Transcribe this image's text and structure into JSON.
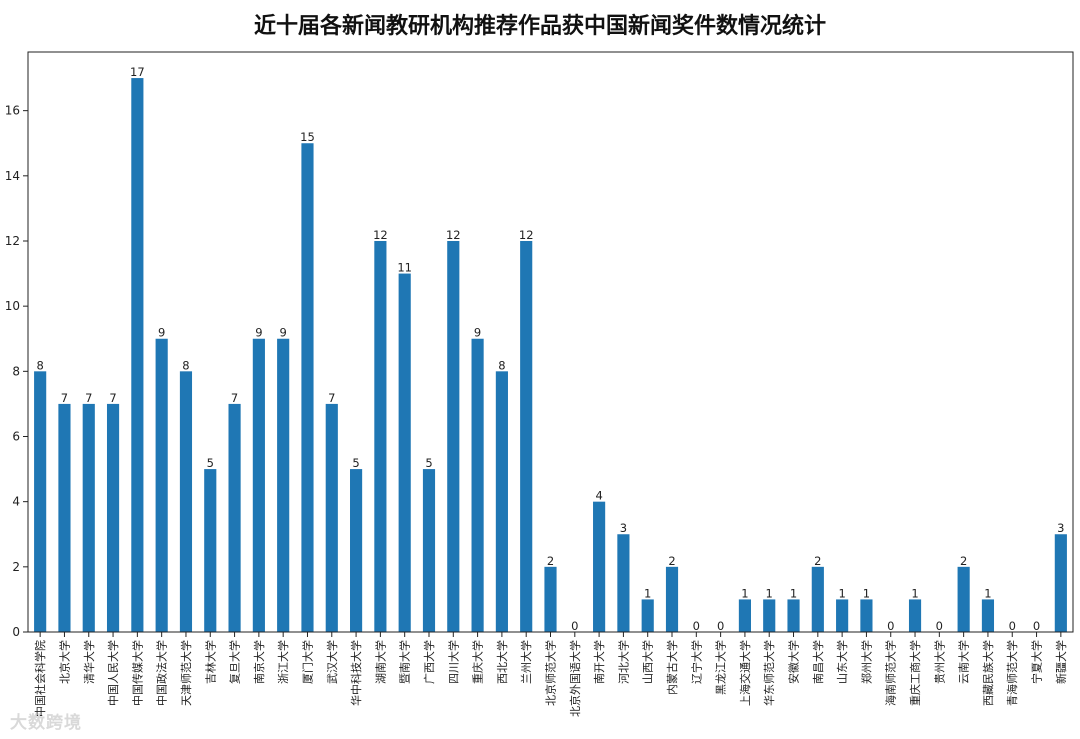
{
  "chart_data": {
    "type": "bar",
    "title": "近十届各新闻教研机构推荐作品获中国新闻奖件数情况统计",
    "xlabel": "",
    "ylabel": "",
    "ylim": [
      0,
      17.8
    ],
    "yticks": [
      0,
      2,
      4,
      6,
      8,
      10,
      12,
      14,
      16
    ],
    "grid": false,
    "bar_color": "#1f77b4",
    "categories": [
      "中国社会科学院",
      "北京大学",
      "清华大学",
      "中国人民大学",
      "中国传媒大学",
      "中国政法大学",
      "天津师范大学",
      "吉林大学",
      "复旦大学",
      "南京大学",
      "浙江大学",
      "厦门大学",
      "武汉大学",
      "华中科技大学",
      "湖南大学",
      "暨南大学",
      "广西大学",
      "四川大学",
      "重庆大学",
      "西北大学",
      "兰州大学",
      "北京师范大学",
      "北京外国语大学",
      "南开大学",
      "河北大学",
      "山西大学",
      "内蒙古大学",
      "辽宁大学",
      "黑龙江大学",
      "上海交通大学",
      "华东师范大学",
      "安徽大学",
      "南昌大学",
      "山东大学",
      "郑州大学",
      "海南师范大学",
      "重庆工商大学",
      "贵州大学",
      "云南大学",
      "西藏民族大学",
      "青海师范大学",
      "宁夏大学",
      "新疆大学"
    ],
    "values": [
      8,
      7,
      7,
      7,
      17,
      9,
      8,
      5,
      7,
      9,
      9,
      15,
      7,
      5,
      12,
      11,
      5,
      12,
      9,
      8,
      12,
      2,
      0,
      4,
      3,
      1,
      2,
      0,
      0,
      1,
      1,
      1,
      2,
      1,
      1,
      0,
      1,
      0,
      2,
      1,
      0,
      0,
      3
    ]
  },
  "watermark": "大数跨境"
}
